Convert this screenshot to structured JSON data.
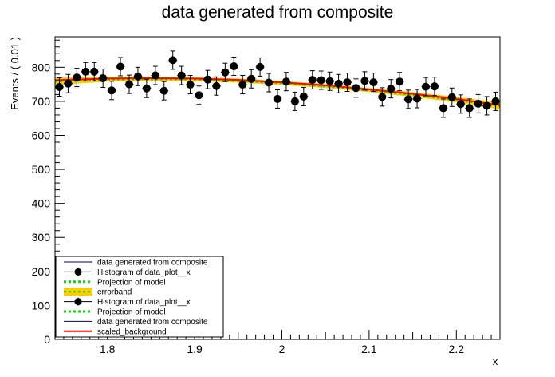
{
  "chart_data": {
    "type": "scatter",
    "title": "data generated from composite",
    "xlabel": "x",
    "ylabel": "Events / ( 0.01 )",
    "xlim": [
      1.74,
      2.25
    ],
    "ylim": [
      0,
      890
    ],
    "x_ticks": [
      {
        "v": 1.8,
        "label": "1.8"
      },
      {
        "v": 1.9,
        "label": "1.9"
      },
      {
        "v": 2.0,
        "label": "2"
      },
      {
        "v": 2.1,
        "label": "2.1"
      },
      {
        "v": 2.2,
        "label": "2.2"
      }
    ],
    "y_ticks": [
      {
        "v": 0,
        "label": "0"
      },
      {
        "v": 100,
        "label": "100"
      },
      {
        "v": 200,
        "label": "200"
      },
      {
        "v": 300,
        "label": "300"
      },
      {
        "v": 400,
        "label": "400"
      },
      {
        "v": 500,
        "label": "500"
      },
      {
        "v": 600,
        "label": "600"
      },
      {
        "v": 700,
        "label": "700"
      },
      {
        "v": 800,
        "label": "800"
      }
    ],
    "series": [
      {
        "name": "Histogram of data_plot__x",
        "kind": "points_with_errors",
        "color": "#000000",
        "x": [
          1.745,
          1.755,
          1.765,
          1.775,
          1.785,
          1.795,
          1.805,
          1.815,
          1.825,
          1.835,
          1.845,
          1.855,
          1.865,
          1.875,
          1.885,
          1.895,
          1.905,
          1.915,
          1.925,
          1.935,
          1.945,
          1.955,
          1.965,
          1.975,
          1.985,
          1.995,
          2.005,
          2.015,
          2.025,
          2.035,
          2.045,
          2.055,
          2.065,
          2.075,
          2.085,
          2.095,
          2.105,
          2.115,
          2.125,
          2.135,
          2.145,
          2.155,
          2.165,
          2.175,
          2.185,
          2.195,
          2.205,
          2.215,
          2.225,
          2.235,
          2.245
        ],
        "y": [
          742,
          752,
          770,
          787,
          787,
          768,
          732,
          802,
          750,
          773,
          738,
          776,
          731,
          821,
          776,
          749,
          718,
          764,
          745,
          785,
          803,
          749,
          766,
          801,
          755,
          707,
          758,
          700,
          714,
          763,
          762,
          759,
          752,
          756,
          739,
          760,
          756,
          713,
          737,
          758,
          706,
          708,
          743,
          744,
          680,
          712,
          692,
          680,
          693,
          687,
          700
        ],
        "err": 27
      },
      {
        "name": "errorband",
        "kind": "band",
        "color": "#ffcc00",
        "x": [
          1.74,
          1.8,
          1.85,
          1.9,
          1.95,
          2.0,
          2.05,
          2.1,
          2.15,
          2.2,
          2.25
        ],
        "lo": [
          748,
          758,
          760,
          759,
          755,
          748,
          739,
          727,
          713,
          697,
          677
        ],
        "hi": [
          770,
          772,
          772,
          771,
          767,
          760,
          751,
          739,
          727,
          713,
          697
        ]
      },
      {
        "name": "Projection of model",
        "kind": "dotted_line",
        "color": "#00dd00",
        "x": [
          1.74,
          1.8,
          1.85,
          1.9,
          1.95,
          2.0,
          2.05,
          2.1,
          2.15,
          2.2,
          2.25
        ],
        "y": [
          759,
          765,
          766,
          765,
          761,
          754,
          745,
          733,
          720,
          705,
          687
        ]
      },
      {
        "name": "scaled_background",
        "kind": "line",
        "color": "#ff0000",
        "x": [
          1.74,
          1.8,
          1.85,
          1.9,
          1.95,
          2.0,
          2.05,
          2.1,
          2.15,
          2.2,
          2.25
        ],
        "y": [
          762,
          767,
          768,
          767,
          763,
          756,
          747,
          735,
          722,
          707,
          689
        ]
      }
    ],
    "legend": {
      "placement": "bottom-left",
      "entries": [
        {
          "label": "data generated from composite",
          "kind": "thin_line",
          "color": "#000080"
        },
        {
          "label": "Histogram of data_plot__x",
          "kind": "marker",
          "color": "#000000"
        },
        {
          "label": "Projection of model",
          "kind": "dotted_line",
          "color": "#00dd00"
        },
        {
          "label": "errorband",
          "kind": "band",
          "color": "#ffcc00"
        },
        {
          "label": "Histogram of data_plot__x",
          "kind": "marker",
          "color": "#000000"
        },
        {
          "label": "Projection of model",
          "kind": "dotted_line",
          "color": "#00dd00"
        },
        {
          "label": "data generated from composite",
          "kind": "thin_line",
          "color": "#000080"
        },
        {
          "label": "scaled_background",
          "kind": "line",
          "color": "#ff0000"
        }
      ]
    }
  }
}
